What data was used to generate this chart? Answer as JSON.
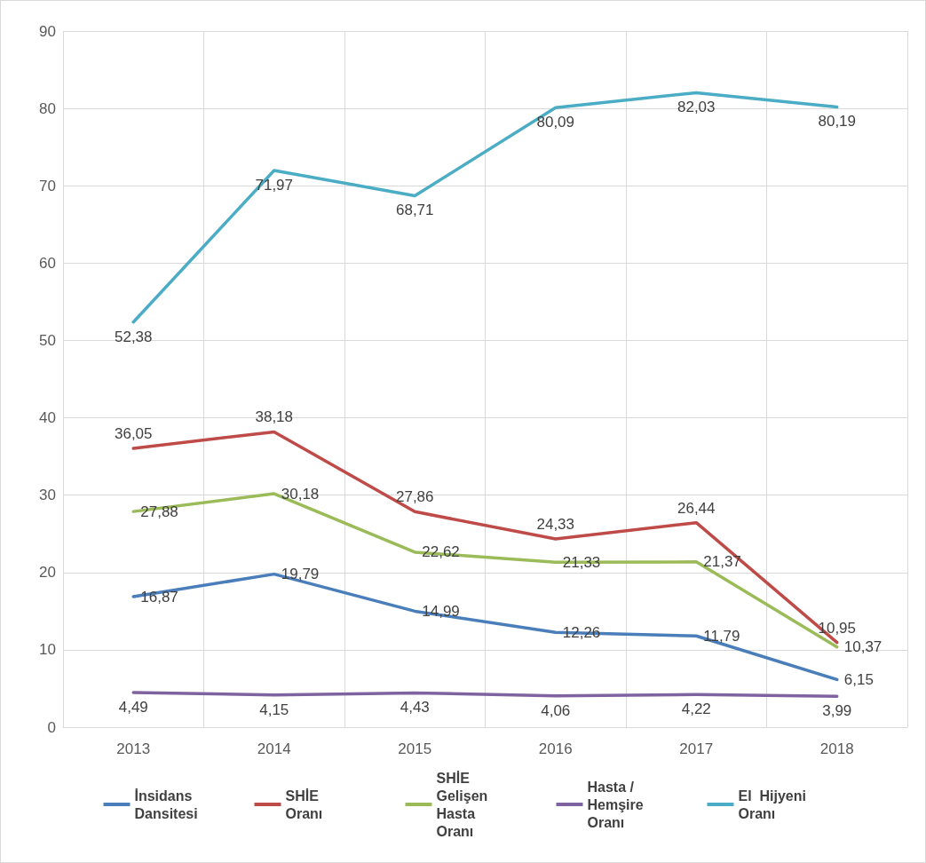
{
  "chart_data": {
    "type": "line",
    "categories": [
      "2013",
      "2014",
      "2015",
      "2016",
      "2017",
      "2018"
    ],
    "ylim": [
      0,
      90
    ],
    "yticks": [
      0,
      10,
      20,
      30,
      40,
      50,
      60,
      70,
      80,
      90
    ],
    "grid": true,
    "legend": "bottom",
    "marker": "none",
    "line_style": "solid",
    "series": [
      {
        "name": "İnsidans Dansitesi",
        "color": "#4a7ebb",
        "values": [
          16.87,
          19.79,
          14.99,
          12.26,
          11.79,
          6.15
        ],
        "value_labels": [
          "16,87",
          "19,79",
          "14,99",
          "12,26",
          "11,79",
          "6,15"
        ]
      },
      {
        "name": "SHİE Oranı",
        "color": "#be4b48",
        "values": [
          36.05,
          38.18,
          27.86,
          24.33,
          26.44,
          10.95
        ],
        "value_labels": [
          "36,05",
          "38,18",
          "27,86",
          "24,33",
          "26,44",
          "10,95"
        ]
      },
      {
        "name": "SHİE Gelişen Hasta Oranı",
        "color": "#9bbb59",
        "values": [
          27.88,
          30.18,
          22.62,
          21.33,
          21.37,
          10.37
        ],
        "value_labels": [
          "27,88",
          "30,18",
          "22,62",
          "21,33",
          "21,37",
          "10,37"
        ]
      },
      {
        "name": "Hasta /Hemşire Oranı",
        "color": "#7f63a1",
        "values": [
          4.49,
          4.15,
          4.43,
          4.06,
          4.22,
          3.99
        ],
        "value_labels": [
          "4,49",
          "4,15",
          "4,43",
          "4,06",
          "4,22",
          "3,99"
        ]
      },
      {
        "name": "El  Hijyeni Oranı",
        "color": "#4bacc6",
        "values": [
          52.38,
          71.97,
          68.71,
          80.09,
          82.03,
          80.19
        ],
        "value_labels": [
          "52,38",
          "71,97",
          "68,71",
          "80,09",
          "82,03",
          "80,19"
        ]
      }
    ]
  }
}
